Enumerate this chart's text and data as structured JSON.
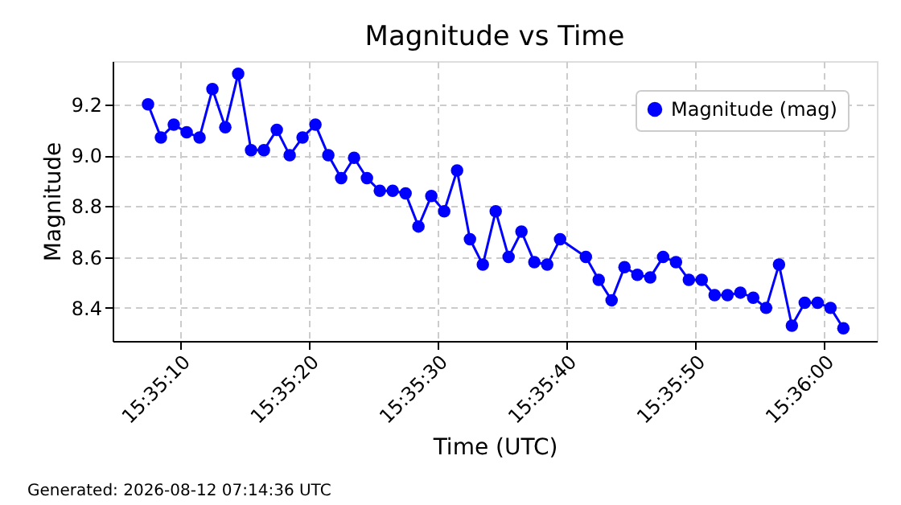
{
  "chart_data": {
    "type": "line",
    "title": "Magnitude vs Time",
    "xlabel": "Time (UTC)",
    "ylabel": "Magnitude",
    "annotations": [
      "Generated: 2026-08-12 07:14:36 UTC"
    ],
    "x": [
      "2026-08-12T15:35:07.5",
      "2026-08-12T15:35:08.5",
      "2026-08-12T15:35:09.5",
      "2026-08-12T15:35:10.5",
      "2026-08-12T15:35:11.5",
      "2026-08-12T15:35:12.5",
      "2026-08-12T15:35:13.5",
      "2026-08-12T15:35:14.5",
      "2026-08-12T15:35:15.5",
      "2026-08-12T15:35:16.5",
      "2026-08-12T15:35:17.5",
      "2026-08-12T15:35:18.5",
      "2026-08-12T15:35:19.5",
      "2026-08-12T15:35:20.5",
      "2026-08-12T15:35:21.5",
      "2026-08-12T15:35:22.5",
      "2026-08-12T15:35:23.5",
      "2026-08-12T15:35:24.5",
      "2026-08-12T15:35:25.5",
      "2026-08-12T15:35:26.5",
      "2026-08-12T15:35:27.5",
      "2026-08-12T15:35:28.5",
      "2026-08-12T15:35:29.5",
      "2026-08-12T15:35:30.5",
      "2026-08-12T15:35:31.5",
      "2026-08-12T15:35:32.5",
      "2026-08-12T15:35:33.5",
      "2026-08-12T15:35:34.5",
      "2026-08-12T15:35:35.5",
      "2026-08-12T15:35:36.5",
      "2026-08-12T15:35:37.5",
      "2026-08-12T15:35:38.5",
      "2026-08-12T15:35:39.5",
      "2026-08-12T15:35:41.5",
      "2026-08-12T15:35:42.5",
      "2026-08-12T15:35:43.5",
      "2026-08-12T15:35:44.5",
      "2026-08-12T15:35:45.5",
      "2026-08-12T15:35:46.5",
      "2026-08-12T15:35:47.5",
      "2026-08-12T15:35:48.5",
      "2026-08-12T15:35:49.5",
      "2026-08-12T15:35:50.5",
      "2026-08-12T15:35:51.5",
      "2026-08-12T15:35:52.5",
      "2026-08-12T15:35:53.5",
      "2026-08-12T15:35:54.5",
      "2026-08-12T15:35:55.5",
      "2026-08-12T15:35:56.5",
      "2026-08-12T15:35:57.5",
      "2026-08-12T15:35:58.5",
      "2026-08-12T15:35:59.5",
      "2026-08-12T15:36:00.5",
      "2026-08-12T15:36:01.5"
    ],
    "series": [
      {
        "name": "Magnitude (mag)",
        "color": "#0000ff",
        "values": [
          9.2,
          9.07,
          9.12,
          9.09,
          9.07,
          9.26,
          9.11,
          9.32,
          9.02,
          9.02,
          9.1,
          9.0,
          9.07,
          9.12,
          9.0,
          8.91,
          8.99,
          8.91,
          8.86,
          8.86,
          8.85,
          8.72,
          8.84,
          8.78,
          8.94,
          8.67,
          8.57,
          8.78,
          8.6,
          8.7,
          8.58,
          8.57,
          8.67,
          8.6,
          8.51,
          8.43,
          8.56,
          8.53,
          8.52,
          8.6,
          8.58,
          8.51,
          8.51,
          8.45,
          8.45,
          8.46,
          8.44,
          8.4,
          8.57,
          8.33,
          8.42,
          8.42,
          8.4,
          8.32
        ]
      }
    ],
    "xlim": [
      "2026-08-12T15:35:04.75",
      "2026-08-12T15:36:04.1"
    ],
    "xticks": [
      {
        "value": "2026-08-12T15:35:10",
        "label": "15:35:10"
      },
      {
        "value": "2026-08-12T15:35:20",
        "label": "15:35:20"
      },
      {
        "value": "2026-08-12T15:35:30",
        "label": "15:35:30"
      },
      {
        "value": "2026-08-12T15:35:40",
        "label": "15:35:40"
      },
      {
        "value": "2026-08-12T15:35:50",
        "label": "15:35:50"
      },
      {
        "value": "2026-08-12T15:36:00",
        "label": "15:36:00"
      }
    ],
    "ylim": [
      8.27,
      9.37
    ],
    "yticks": [
      {
        "value": 8.4,
        "label": "8.4"
      },
      {
        "value": 8.6,
        "label": "8.6"
      },
      {
        "value": 8.8,
        "label": "8.8"
      },
      {
        "value": 9.0,
        "label": "9.0"
      },
      {
        "value": 9.2,
        "label": "9.2"
      }
    ],
    "grid": true,
    "legend": "top right",
    "marker": "circle",
    "line_style": "solid"
  }
}
